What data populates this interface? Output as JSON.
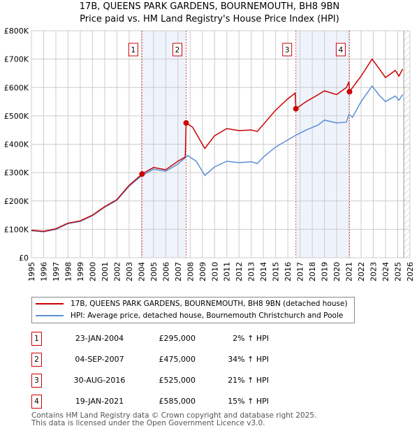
{
  "title": "17B, QUEENS PARK GARDENS, BOURNEMOUTH, BH8 9BN",
  "subtitle": "Price paid vs. HM Land Registry's House Price Index (HPI)",
  "chart_data": {
    "type": "line",
    "title": "17B, QUEENS PARK GARDENS, BOURNEMOUTH, BH8 9BN",
    "subtitle": "Price paid vs. HM Land Registry's House Price Index (HPI)",
    "xlim": [
      1995,
      2026
    ],
    "ylim": [
      0,
      800000
    ],
    "x_ticks": [
      "1995",
      "1996",
      "1997",
      "1998",
      "1999",
      "2000",
      "2001",
      "2002",
      "2003",
      "2004",
      "2005",
      "2006",
      "2007",
      "2008",
      "2009",
      "2010",
      "2011",
      "2012",
      "2013",
      "2014",
      "2015",
      "2016",
      "2017",
      "2018",
      "2019",
      "2020",
      "2021",
      "2022",
      "2023",
      "2024",
      "2025",
      "2026"
    ],
    "y_ticks": [
      {
        "v": 0,
        "label": "£0"
      },
      {
        "v": 100000,
        "label": "£100K"
      },
      {
        "v": 200000,
        "label": "£200K"
      },
      {
        "v": 300000,
        "label": "£300K"
      },
      {
        "v": 400000,
        "label": "£400K"
      },
      {
        "v": 500000,
        "label": "£500K"
      },
      {
        "v": 600000,
        "label": "£600K"
      },
      {
        "v": 700000,
        "label": "£700K"
      },
      {
        "v": 800000,
        "label": "£800K"
      }
    ],
    "grid": true,
    "forecast_hatch_from": 2025.5,
    "shaded_ranges": [
      [
        2004.06,
        2007.67
      ],
      [
        2016.66,
        2021.05
      ]
    ],
    "series": [
      {
        "name": "17B, QUEENS PARK GARDENS, BOURNEMOUTH, BH8 9BN (detached house)",
        "color": "#cc0000",
        "points": [
          [
            1995,
            97000
          ],
          [
            1996,
            93000
          ],
          [
            1997,
            102000
          ],
          [
            1998,
            122000
          ],
          [
            1999,
            130000
          ],
          [
            2000,
            150000
          ],
          [
            2001,
            180000
          ],
          [
            2002,
            205000
          ],
          [
            2003,
            255000
          ],
          [
            2004.06,
            295000
          ],
          [
            2005,
            318000
          ],
          [
            2006,
            310000
          ],
          [
            2007,
            340000
          ],
          [
            2007.6,
            355000
          ],
          [
            2007.67,
            475000
          ],
          [
            2008.2,
            460000
          ],
          [
            2009.2,
            385000
          ],
          [
            2010,
            430000
          ],
          [
            2011,
            455000
          ],
          [
            2012,
            448000
          ],
          [
            2013,
            450000
          ],
          [
            2013.5,
            445000
          ],
          [
            2014,
            470000
          ],
          [
            2015,
            520000
          ],
          [
            2016,
            560000
          ],
          [
            2016.6,
            580000
          ],
          [
            2016.66,
            525000
          ],
          [
            2017.5,
            550000
          ],
          [
            2018.5,
            575000
          ],
          [
            2019,
            588000
          ],
          [
            2020,
            575000
          ],
          [
            2020.8,
            600000
          ],
          [
            2021.0,
            620000
          ],
          [
            2021.05,
            585000
          ],
          [
            2022,
            640000
          ],
          [
            2022.9,
            700000
          ],
          [
            2023.5,
            665000
          ],
          [
            2024,
            635000
          ],
          [
            2024.8,
            660000
          ],
          [
            2025.1,
            640000
          ],
          [
            2025.4,
            665000
          ]
        ]
      },
      {
        "name": "HPI: Average price, detached house, Bournemouth Christchurch and Poole",
        "color": "#5b8fd4",
        "points": [
          [
            1995,
            95000
          ],
          [
            1996,
            91000
          ],
          [
            1997,
            100000
          ],
          [
            1998,
            120000
          ],
          [
            1999,
            128000
          ],
          [
            2000,
            148000
          ],
          [
            2001,
            178000
          ],
          [
            2002,
            202000
          ],
          [
            2003,
            252000
          ],
          [
            2004,
            288000
          ],
          [
            2005,
            312000
          ],
          [
            2006,
            305000
          ],
          [
            2007,
            330000
          ],
          [
            2007.8,
            360000
          ],
          [
            2008.5,
            340000
          ],
          [
            2009.2,
            290000
          ],
          [
            2010,
            320000
          ],
          [
            2011,
            340000
          ],
          [
            2012,
            335000
          ],
          [
            2013,
            338000
          ],
          [
            2013.5,
            332000
          ],
          [
            2014,
            355000
          ],
          [
            2015,
            390000
          ],
          [
            2016,
            415000
          ],
          [
            2016.66,
            432000
          ],
          [
            2017.5,
            450000
          ],
          [
            2018.5,
            468000
          ],
          [
            2019,
            485000
          ],
          [
            2020,
            475000
          ],
          [
            2020.8,
            478000
          ],
          [
            2021,
            505000
          ],
          [
            2021.3,
            495000
          ],
          [
            2022,
            550000
          ],
          [
            2022.9,
            605000
          ],
          [
            2023.5,
            572000
          ],
          [
            2024,
            550000
          ],
          [
            2024.8,
            570000
          ],
          [
            2025.1,
            555000
          ],
          [
            2025.4,
            575000
          ]
        ]
      }
    ],
    "sales": [
      {
        "label": "1",
        "x": 2004.06,
        "y": 295000
      },
      {
        "label": "2",
        "x": 2007.67,
        "y": 475000
      },
      {
        "label": "3",
        "x": 2016.66,
        "y": 525000
      },
      {
        "label": "4",
        "x": 2021.05,
        "y": 585000
      }
    ]
  },
  "legend": [
    {
      "label": "17B, QUEENS PARK GARDENS, BOURNEMOUTH, BH8 9BN (detached house)",
      "color": "#cc0000"
    },
    {
      "label": "HPI: Average price, detached house, Bournemouth Christchurch and Poole",
      "color": "#5b8fd4"
    }
  ],
  "transactions": [
    {
      "num": "1",
      "date": "23-JAN-2004",
      "price": "£295,000",
      "hpi": "2% ↑ HPI"
    },
    {
      "num": "2",
      "date": "04-SEP-2007",
      "price": "£475,000",
      "hpi": "34% ↑ HPI"
    },
    {
      "num": "3",
      "date": "30-AUG-2016",
      "price": "£525,000",
      "hpi": "21% ↑ HPI"
    },
    {
      "num": "4",
      "date": "19-JAN-2021",
      "price": "£585,000",
      "hpi": "15% ↑ HPI"
    }
  ],
  "footer": [
    "Contains HM Land Registry data © Crown copyright and database right 2025.",
    "This data is licensed under the Open Government Licence v3.0."
  ]
}
